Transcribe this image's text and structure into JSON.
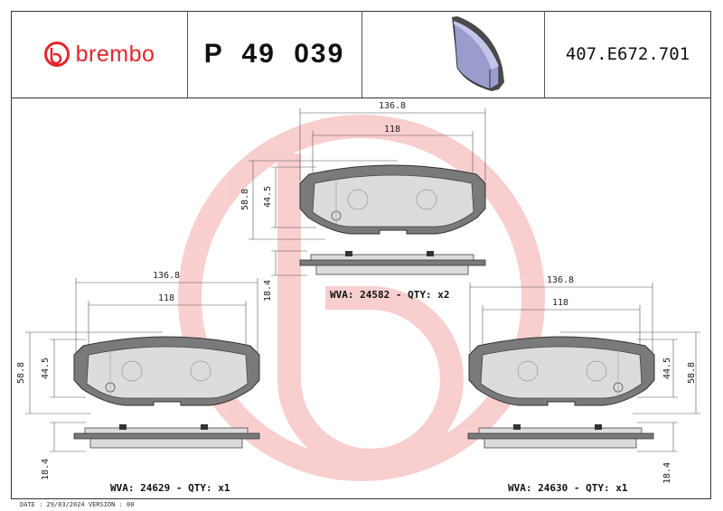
{
  "header": {
    "brand": "brembo",
    "part_number": "P 49 039",
    "reference": "407.E672.701"
  },
  "colors": {
    "brand_red": "#e3262b",
    "friction": "#d9d9d9",
    "backplate": "#7a7a7a"
  },
  "views": [
    {
      "width_total": "136.8",
      "width_friction": "118",
      "height_total": "58.8",
      "height_friction": "44.5",
      "thickness": "18.4",
      "label": "WVA: 24582 - QTY: x2"
    },
    {
      "width_total": "136.8",
      "width_friction": "118",
      "height_total": "58.8",
      "height_friction": "44.5",
      "thickness": "18.4",
      "label": "WVA: 24629 - QTY: x1"
    },
    {
      "width_total": "136.8",
      "width_friction": "118",
      "height_total": "58.8",
      "height_friction": "44.5",
      "thickness": "18.4",
      "label": "WVA: 24630 - QTY: x1"
    }
  ],
  "footer": "DATE : 29/03/2024 VERSION : 00"
}
